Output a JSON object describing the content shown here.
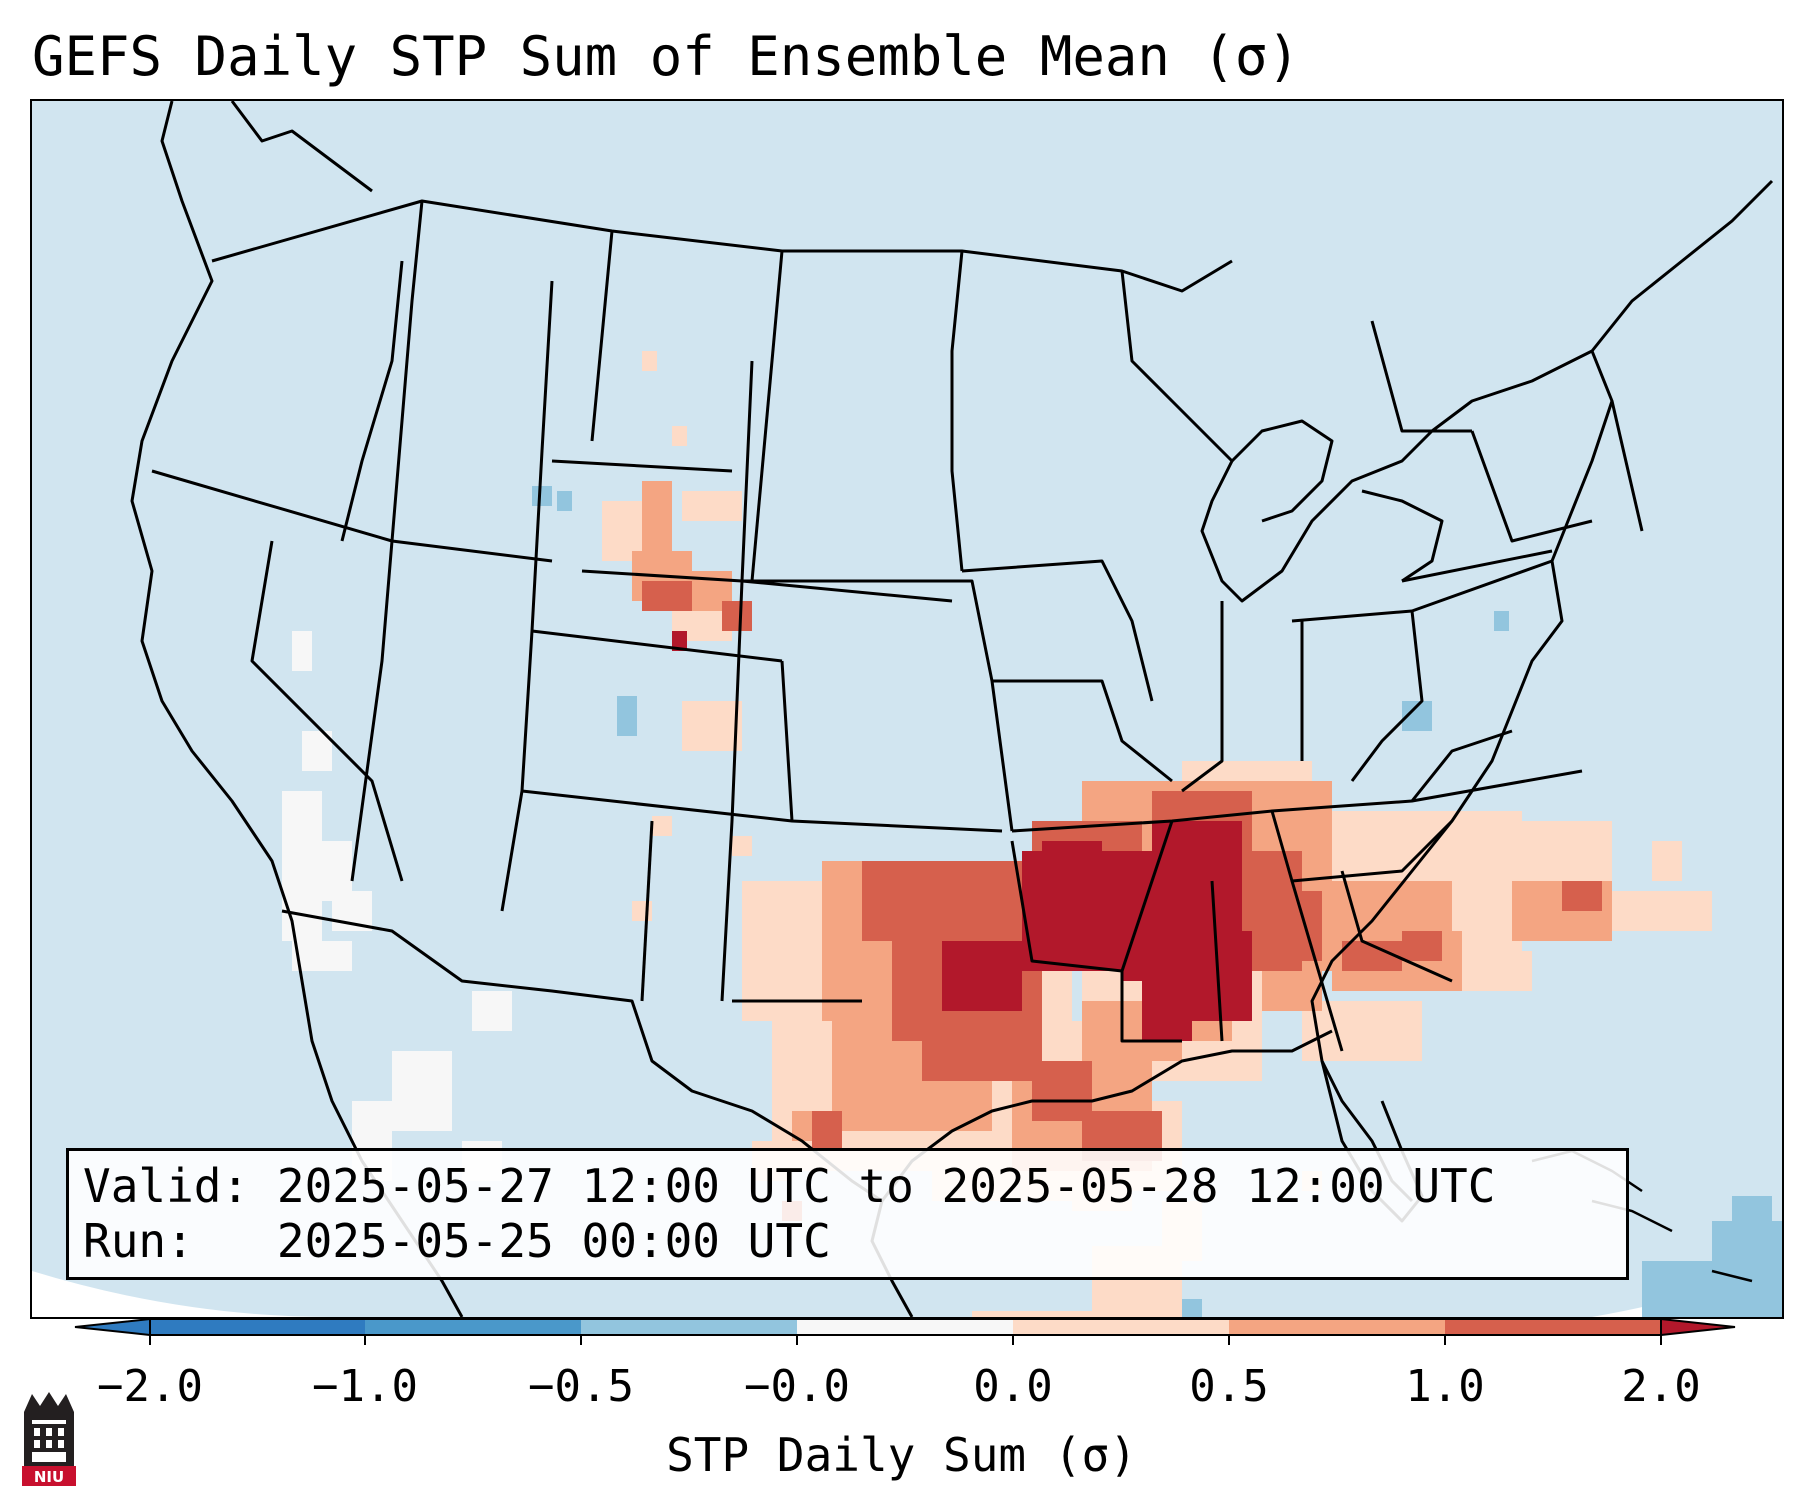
{
  "title": "GEFS Daily STP Sum of Ensemble Mean (σ)",
  "info": {
    "valid_label": "Valid:",
    "valid_value": "2025-05-27 12:00 UTC to 2025-05-28 12:00 UTC",
    "run_label": "Run:",
    "run_value": "2025-05-25 00:00 UTC"
  },
  "colorbar": {
    "label": "STP Daily Sum (σ)",
    "ticks": [
      "−2.0",
      "−1.0",
      "−0.5",
      "−0.0",
      "0.0",
      "0.5",
      "1.0",
      "2.0"
    ],
    "colors": [
      "#2f7bc0",
      "#4a98ca",
      "#92c5de",
      "#d1e5f0",
      "#fddbc7",
      "#f4a582",
      "#d6604d",
      "#b2182b"
    ]
  },
  "logo": {
    "text": "NIU",
    "name": "Northern Illinois University"
  },
  "map": {
    "background_color": "#d1e5f0",
    "region": "Continental United States",
    "highlight": "Mid-South / Lower Mississippi Valley"
  }
}
